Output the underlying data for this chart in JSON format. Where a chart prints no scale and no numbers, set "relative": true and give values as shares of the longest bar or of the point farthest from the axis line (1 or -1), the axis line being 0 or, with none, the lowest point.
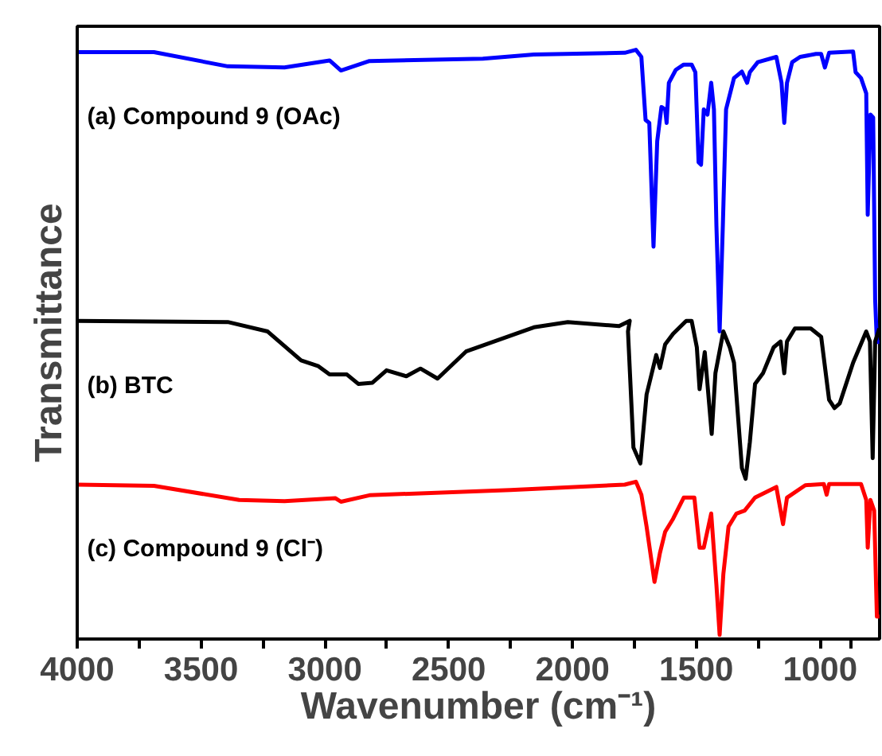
{
  "chart_data": {
    "type": "line",
    "relative": true,
    "xlabel": "Wavenumber (cm⁻¹)",
    "ylabel": "Transmittance",
    "xlim": [
      4000,
      760
    ],
    "xticks": [
      4000,
      {
        "value": 3750,
        "label": null
      },
      3500,
      {
        "value": 3250,
        "label": null
      },
      3000,
      {
        "value": 2750,
        "label": null
      },
      2500,
      {
        "value": 2250,
        "label": null
      },
      2000,
      {
        "value": 1750,
        "label": null
      },
      1500,
      {
        "value": 1250,
        "label": null
      },
      1000,
      {
        "value": 875,
        "label": null
      }
    ],
    "grid": false,
    "legend": false,
    "marker": "none",
    "line_style": "solid",
    "series": [
      {
        "name": "(a) Compound 9 (OAc)",
        "color": "#0000ff",
        "x": [
          4000,
          3690,
          3392,
          3163,
          2981,
          2935,
          2820,
          2362,
          2156,
          1789,
          1744,
          1722,
          1705,
          1690,
          1673,
          1658,
          1641,
          1626,
          1620,
          1611,
          1583,
          1551,
          1519,
          1504,
          1491,
          1481,
          1470,
          1455,
          1440,
          1429,
          1419,
          1406,
          1393,
          1380,
          1348,
          1316,
          1295,
          1284,
          1252,
          1177,
          1156,
          1145,
          1134,
          1113,
          1081,
          1017,
          996,
          981,
          964,
          867,
          857,
          835,
          814,
          808,
          797,
          786,
          778,
          771,
          761
        ],
        "values": [
          0.996,
          0.996,
          0.972,
          0.97,
          0.982,
          0.965,
          0.981,
          0.985,
          0.992,
          0.995,
          1.0,
          0.988,
          0.881,
          0.876,
          0.666,
          0.845,
          0.903,
          0.899,
          0.876,
          0.944,
          0.966,
          0.975,
          0.975,
          0.962,
          0.809,
          0.805,
          0.899,
          0.89,
          0.944,
          0.899,
          0.702,
          0.522,
          0.702,
          0.899,
          0.952,
          0.963,
          0.944,
          0.962,
          0.979,
          0.988,
          0.944,
          0.876,
          0.944,
          0.979,
          0.988,
          0.993,
          0.993,
          0.97,
          0.995,
          0.997,
          0.962,
          0.952,
          0.926,
          0.72,
          0.89,
          0.885,
          0.576,
          0.504,
          0.504
        ]
      },
      {
        "name": "(b) BTC",
        "color": "#000000",
        "x": [
          4000,
          3392,
          3231,
          3096,
          3026,
          2981,
          2911,
          2865,
          2808,
          2751,
          2671,
          2614,
          2545,
          2430,
          2156,
          2019,
          1812,
          1769,
          1776,
          1754,
          1726,
          1701,
          1662,
          1647,
          1626,
          1594,
          1541,
          1519,
          1498,
          1487,
          1466,
          1438,
          1423,
          1391,
          1365,
          1348,
          1316,
          1301,
          1284,
          1263,
          1231,
          1188,
          1160,
          1145,
          1134,
          1102,
          1038,
          996,
          964,
          942,
          921,
          867,
          814,
          799,
          788,
          778,
          761
        ],
        "values": [
          0.54,
          0.538,
          0.522,
          0.473,
          0.463,
          0.449,
          0.449,
          0.433,
          0.435,
          0.456,
          0.446,
          0.459,
          0.442,
          0.488,
          0.529,
          0.538,
          0.531,
          0.54,
          0.522,
          0.325,
          0.298,
          0.415,
          0.482,
          0.46,
          0.5,
          0.518,
          0.54,
          0.54,
          0.495,
          0.424,
          0.487,
          0.348,
          0.451,
          0.522,
          0.495,
          0.469,
          0.29,
          0.272,
          0.334,
          0.433,
          0.451,
          0.495,
          0.505,
          0.451,
          0.505,
          0.527,
          0.527,
          0.513,
          0.406,
          0.392,
          0.4,
          0.469,
          0.522,
          0.505,
          0.307,
          0.505,
          0.527
        ]
      },
      {
        "name": "(c) Compound 9 (Cl⁻)",
        "color": "#ff0000",
        "x": [
          4000,
          3690,
          3346,
          3163,
          2957,
          2935,
          2820,
          2250,
          1789,
          1744,
          1722,
          1701,
          1669,
          1647,
          1626,
          1594,
          1551,
          1508,
          1487,
          1470,
          1440,
          1419,
          1406,
          1391,
          1370,
          1338,
          1305,
          1263,
          1177,
          1150,
          1134,
          1060,
          985,
          974,
          964,
          835,
          814,
          808,
          797,
          782,
          771,
          761
        ],
        "values": [
          0.262,
          0.26,
          0.236,
          0.234,
          0.239,
          0.233,
          0.244,
          0.253,
          0.262,
          0.267,
          0.245,
          0.191,
          0.097,
          0.146,
          0.182,
          0.204,
          0.24,
          0.24,
          0.155,
          0.155,
          0.213,
          0.092,
          0.007,
          0.11,
          0.191,
          0.213,
          0.218,
          0.24,
          0.258,
          0.195,
          0.24,
          0.261,
          0.263,
          0.245,
          0.263,
          0.263,
          0.236,
          0.155,
          0.236,
          0.218,
          0.038,
          0.038
        ]
      }
    ]
  }
}
